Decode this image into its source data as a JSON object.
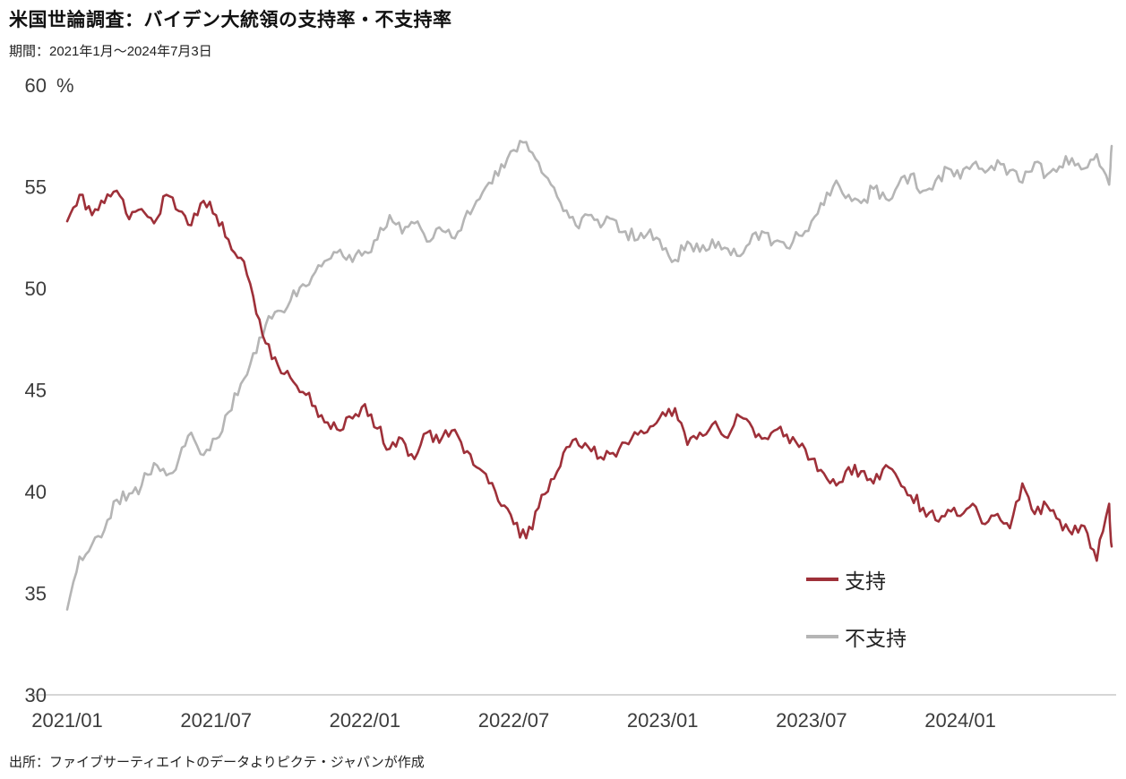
{
  "title": "米国世論調査：バイデン大統領の支持率・不支持率",
  "subtitle": "期間：2021年1月～2024年7月3日",
  "source": "出所：ファイブサーティエイトのデータよりピクテ・ジャパンが作成",
  "legend": [
    {
      "label": "支持",
      "color": "#9e3039"
    },
    {
      "label": "不支持",
      "color": "#b5b5b5"
    }
  ],
  "chart_data": {
    "type": "line",
    "title": "米国世論調査：バイデン大統領の支持率・不支持率",
    "x_unit": "months since 2021-01",
    "y_unit": "%",
    "ylim": [
      30,
      60
    ],
    "xlim": [
      0,
      42.1
    ],
    "grid": false,
    "legend_position": "inside-right-bottom",
    "yticks": [
      30,
      35,
      40,
      45,
      50,
      55,
      60
    ],
    "xticks": [
      {
        "pos": 0,
        "label": "2021/01"
      },
      {
        "pos": 6,
        "label": "2021/07"
      },
      {
        "pos": 12,
        "label": "2022/01"
      },
      {
        "pos": 18,
        "label": "2022/07"
      },
      {
        "pos": 24,
        "label": "2023/01"
      },
      {
        "pos": 30,
        "label": "2023/07"
      },
      {
        "pos": 36,
        "label": "2024/01"
      }
    ],
    "x": [
      0,
      0.5,
      1,
      1.5,
      2,
      2.5,
      3,
      3.5,
      4,
      4.5,
      5,
      5.5,
      6,
      6.5,
      7,
      7.5,
      8,
      8.5,
      9,
      9.5,
      10,
      10.5,
      11,
      11.5,
      12,
      12.5,
      13,
      13.5,
      14,
      14.5,
      15,
      15.5,
      16,
      16.5,
      17,
      17.5,
      18,
      18.5,
      19,
      19.5,
      20,
      20.5,
      21,
      21.5,
      22,
      22.5,
      23,
      23.5,
      24,
      24.5,
      25,
      25.5,
      26,
      26.5,
      27,
      27.5,
      28,
      28.5,
      29,
      29.5,
      30,
      30.5,
      31,
      31.5,
      32,
      32.5,
      33,
      33.5,
      34,
      34.5,
      35,
      35.5,
      36,
      36.5,
      37,
      37.5,
      38,
      38.5,
      39,
      39.5,
      40,
      40.5,
      41,
      41.5,
      42,
      42.1
    ],
    "series": [
      {
        "name": "支持",
        "color": "#9e3039",
        "values": [
          53.3,
          54.6,
          53.6,
          54.2,
          54.8,
          53.4,
          53.9,
          53.2,
          54.6,
          53.8,
          53.1,
          54.3,
          53.6,
          52.4,
          51.5,
          49.6,
          47.3,
          46.2,
          45.6,
          44.9,
          44.2,
          43.4,
          43.0,
          43.6,
          44.3,
          43.1,
          42.1,
          42.6,
          41.6,
          42.9,
          42.4,
          43.0,
          41.9,
          41.2,
          40.4,
          39.3,
          38.4,
          37.7,
          39.2,
          40.6,
          41.9,
          42.6,
          42.2,
          41.7,
          41.9,
          42.4,
          42.8,
          43.2,
          43.9,
          44.1,
          42.3,
          42.9,
          43.3,
          42.7,
          43.8,
          43.4,
          42.6,
          43.0,
          42.8,
          42.2,
          41.6,
          40.9,
          40.3,
          41.2,
          41.0,
          40.4,
          41.3,
          40.6,
          39.8,
          39.2,
          38.6,
          39.1,
          38.8,
          39.4,
          38.4,
          38.9,
          38.2,
          40.4,
          38.9,
          39.3,
          38.6,
          37.9,
          38.3,
          36.6,
          39.4,
          37.3
        ]
      },
      {
        "name": "不支持",
        "color": "#b5b5b5",
        "values": [
          34.2,
          36.8,
          37.4,
          38.1,
          39.6,
          39.9,
          40.3,
          41.4,
          40.8,
          41.6,
          42.9,
          41.8,
          42.6,
          43.9,
          45.3,
          46.8,
          48.2,
          48.9,
          49.4,
          50.2,
          50.8,
          51.4,
          51.9,
          51.3,
          51.8,
          52.4,
          53.6,
          52.7,
          53.2,
          52.3,
          53.0,
          52.5,
          53.4,
          54.3,
          55.2,
          56.1,
          56.8,
          57.2,
          56.2,
          55.1,
          53.8,
          53.1,
          53.6,
          53.0,
          53.4,
          52.8,
          52.4,
          52.9,
          51.9,
          51.4,
          52.3,
          51.8,
          52.4,
          52.0,
          51.6,
          52.2,
          52.8,
          52.3,
          52.0,
          52.6,
          53.3,
          54.1,
          55.3,
          54.6,
          54.2,
          54.9,
          54.4,
          55.1,
          55.6,
          54.8,
          55.3,
          55.9,
          55.4,
          56.1,
          55.7,
          56.3,
          55.8,
          55.2,
          56.2,
          55.6,
          56.0,
          56.4,
          55.9,
          56.6,
          55.1,
          57.0
        ]
      }
    ]
  }
}
